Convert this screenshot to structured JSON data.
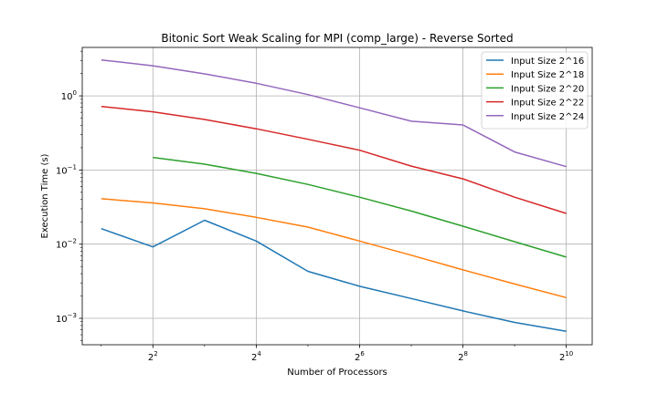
{
  "chart_data": {
    "type": "line",
    "title": "Bitonic Sort Weak Scaling for MPI (comp_large) - Reverse Sorted",
    "xlabel": "Number of Processors",
    "ylabel": "Execution Time (s)",
    "x_scale": "log2",
    "y_scale": "log10",
    "xlim": [
      1.55,
      1450
    ],
    "ylim": [
      0.00044,
      4.5
    ],
    "grid": true,
    "legend_position": "top-right",
    "x_ticks": [
      {
        "value": 4,
        "base": "2",
        "exp": "2"
      },
      {
        "value": 16,
        "base": "2",
        "exp": "4"
      },
      {
        "value": 64,
        "base": "2",
        "exp": "6"
      },
      {
        "value": 256,
        "base": "2",
        "exp": "8"
      },
      {
        "value": 1024,
        "base": "2",
        "exp": "10"
      }
    ],
    "y_ticks": [
      {
        "value": 0.001,
        "base": "10",
        "exp": "−3"
      },
      {
        "value": 0.01,
        "base": "10",
        "exp": "−2"
      },
      {
        "value": 0.1,
        "base": "10",
        "exp": "−1"
      },
      {
        "value": 1,
        "base": "10",
        "exp": "0"
      }
    ],
    "series": [
      {
        "name": "Input Size 2^16",
        "color": "#1f77b4",
        "x": [
          2,
          4,
          8,
          16,
          32,
          64,
          128,
          256,
          512,
          1024
        ],
        "values": [
          0.0162,
          0.0092,
          0.021,
          0.011,
          0.0043,
          0.0027,
          0.00185,
          0.00126,
          0.00088,
          0.00067
        ]
      },
      {
        "name": "Input Size 2^18",
        "color": "#ff7f0e",
        "x": [
          2,
          4,
          8,
          16,
          32,
          64,
          128,
          256,
          512,
          1024
        ],
        "values": [
          0.041,
          0.036,
          0.03,
          0.023,
          0.017,
          0.011,
          0.0071,
          0.0045,
          0.0029,
          0.0019
        ]
      },
      {
        "name": "Input Size 2^20",
        "color": "#2ca02c",
        "x": [
          4,
          8,
          16,
          32,
          64,
          128,
          256,
          512,
          1024
        ],
        "values": [
          0.148,
          0.12,
          0.09,
          0.064,
          0.043,
          0.028,
          0.0175,
          0.0108,
          0.0067
        ]
      },
      {
        "name": "Input Size 2^22",
        "color": "#d62728",
        "x": [
          2,
          4,
          8,
          16,
          32,
          64,
          128,
          256,
          512,
          1024
        ],
        "values": [
          0.72,
          0.61,
          0.48,
          0.36,
          0.26,
          0.185,
          0.113,
          0.076,
          0.043,
          0.026
        ]
      },
      {
        "name": "Input Size 2^24",
        "color": "#9467bd",
        "x": [
          2,
          4,
          8,
          16,
          32,
          64,
          128,
          256,
          512,
          1024
        ],
        "values": [
          3.05,
          2.55,
          1.98,
          1.48,
          1.04,
          0.69,
          0.455,
          0.405,
          0.175,
          0.111
        ]
      }
    ]
  }
}
